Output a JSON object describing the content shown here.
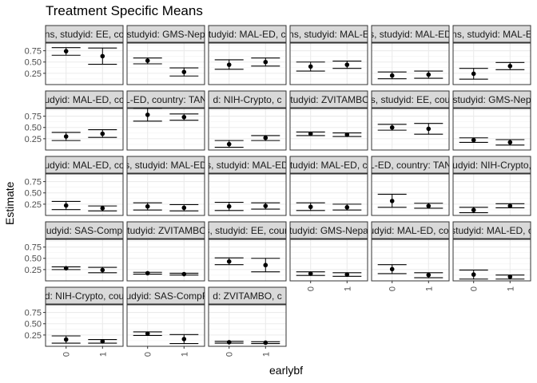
{
  "chart_data": {
    "type": "scatter",
    "title": "Treatment Specific Means",
    "xlabel": "earlybf",
    "ylabel": "Estimate",
    "x_categories": [
      "0",
      "1"
    ],
    "y_ticks": [
      0.25,
      0.5,
      0.75
    ],
    "y_tick_labels": [
      "0.25",
      "0.50",
      "0.75"
    ],
    "ylim": [
      0.0,
      0.92
    ],
    "grid": true,
    "panels": [
      {
        "strip": "ns, studyid: EE, co",
        "points": [
          {
            "x": "0",
            "est": 0.74,
            "lo": 0.65,
            "hi": 0.82
          },
          {
            "x": "1",
            "est": 0.63,
            "lo": 0.45,
            "hi": 0.81
          }
        ]
      },
      {
        "strip": "studyid: GMS-Nep",
        "points": [
          {
            "x": "0",
            "est": 0.53,
            "lo": 0.46,
            "hi": 0.59
          },
          {
            "x": "1",
            "est": 0.28,
            "lo": 0.19,
            "hi": 0.37
          }
        ]
      },
      {
        "strip": "studyid: MAL-ED, co",
        "points": [
          {
            "x": "0",
            "est": 0.44,
            "lo": 0.34,
            "hi": 0.55
          },
          {
            "x": "1",
            "est": 0.5,
            "lo": 0.41,
            "hi": 0.59
          }
        ]
      },
      {
        "strip": "ns, studyid: MAL-E",
        "points": [
          {
            "x": "0",
            "est": 0.4,
            "lo": 0.3,
            "hi": 0.5
          },
          {
            "x": "1",
            "est": 0.44,
            "lo": 0.36,
            "hi": 0.52
          }
        ]
      },
      {
        "strip": "s, studyid: MAL-ED",
        "points": [
          {
            "x": "0",
            "est": 0.2,
            "lo": 0.13,
            "hi": 0.28
          },
          {
            "x": "1",
            "est": 0.22,
            "lo": 0.14,
            "hi": 0.3
          }
        ]
      },
      {
        "strip": "ns, studyid: MAL-E",
        "points": [
          {
            "x": "0",
            "est": 0.24,
            "lo": 0.12,
            "hi": 0.36
          },
          {
            "x": "1",
            "est": 0.41,
            "lo": 0.33,
            "hi": 0.49
          }
        ]
      },
      {
        "strip": "udyid: MAL-ED, co",
        "points": [
          {
            "x": "0",
            "est": 0.3,
            "lo": 0.21,
            "hi": 0.39
          },
          {
            "x": "1",
            "est": 0.36,
            "lo": 0.28,
            "hi": 0.45
          }
        ]
      },
      {
        "strip": "L-ED, country: TAN",
        "points": [
          {
            "x": "0",
            "est": 0.78,
            "lo": 0.64,
            "hi": 0.92
          },
          {
            "x": "1",
            "est": 0.73,
            "lo": 0.66,
            "hi": 0.8
          }
        ]
      },
      {
        "strip": "d: NIH-Crypto, c",
        "points": [
          {
            "x": "0",
            "est": 0.13,
            "lo": 0.06,
            "hi": 0.21
          },
          {
            "x": "1",
            "est": 0.27,
            "lo": 0.21,
            "hi": 0.32
          }
        ]
      },
      {
        "strip": "studyid: ZVITAMBO,",
        "points": [
          {
            "x": "0",
            "est": 0.36,
            "lo": 0.32,
            "hi": 0.4
          },
          {
            "x": "1",
            "est": 0.34,
            "lo": 0.3,
            "hi": 0.38
          }
        ]
      },
      {
        "strip": "s, studyid: EE, cou",
        "points": [
          {
            "x": "0",
            "est": 0.5,
            "lo": 0.44,
            "hi": 0.57
          },
          {
            "x": "1",
            "est": 0.47,
            "lo": 0.35,
            "hi": 0.59
          }
        ]
      },
      {
        "strip": "studyid: GMS-Nep",
        "points": [
          {
            "x": "0",
            "est": 0.22,
            "lo": 0.17,
            "hi": 0.27
          },
          {
            "x": "1",
            "est": 0.17,
            "lo": 0.11,
            "hi": 0.23
          }
        ]
      },
      {
        "strip": "udyid: MAL-ED, co",
        "points": [
          {
            "x": "0",
            "est": 0.22,
            "lo": 0.13,
            "hi": 0.31
          },
          {
            "x": "1",
            "est": 0.16,
            "lo": 0.1,
            "hi": 0.21
          }
        ]
      },
      {
        "strip": "s, studyid: MAL-ED",
        "points": [
          {
            "x": "0",
            "est": 0.2,
            "lo": 0.12,
            "hi": 0.28
          },
          {
            "x": "1",
            "est": 0.17,
            "lo": 0.1,
            "hi": 0.24
          }
        ]
      },
      {
        "strip": "s, studyid: MAL-ED",
        "points": [
          {
            "x": "0",
            "est": 0.2,
            "lo": 0.11,
            "hi": 0.29
          },
          {
            "x": "1",
            "est": 0.21,
            "lo": 0.14,
            "hi": 0.28
          }
        ]
      },
      {
        "strip": "studyid: MAL-ED, co",
        "points": [
          {
            "x": "0",
            "est": 0.19,
            "lo": 0.11,
            "hi": 0.28
          },
          {
            "x": "1",
            "est": 0.18,
            "lo": 0.12,
            "hi": 0.25
          }
        ]
      },
      {
        "strip": "L-ED, country: TAN",
        "points": [
          {
            "x": "0",
            "est": 0.32,
            "lo": 0.18,
            "hi": 0.47
          },
          {
            "x": "1",
            "est": 0.21,
            "lo": 0.16,
            "hi": 0.27
          }
        ]
      },
      {
        "strip": "studyid: NIH-Crypto, c",
        "points": [
          {
            "x": "0",
            "est": 0.12,
            "lo": 0.06,
            "hi": 0.18
          },
          {
            "x": "1",
            "est": 0.21,
            "lo": 0.17,
            "hi": 0.26
          }
        ]
      },
      {
        "strip": "udyid: SAS-Comp",
        "points": [
          {
            "x": "0",
            "est": 0.28,
            "lo": 0.25,
            "hi": 0.31
          },
          {
            "x": "1",
            "est": 0.24,
            "lo": 0.18,
            "hi": 0.3
          }
        ]
      },
      {
        "strip": "studyid: ZVITAMBO,",
        "points": [
          {
            "x": "0",
            "est": 0.17,
            "lo": 0.15,
            "hi": 0.19
          },
          {
            "x": "1",
            "est": 0.15,
            "lo": 0.13,
            "hi": 0.17
          }
        ]
      },
      {
        "strip": "s, studyid: EE, coun",
        "points": [
          {
            "x": "0",
            "est": 0.43,
            "lo": 0.36,
            "hi": 0.51
          },
          {
            "x": "1",
            "est": 0.35,
            "lo": 0.2,
            "hi": 0.5
          }
        ]
      },
      {
        "strip": "studyid: GMS-Nepal,",
        "points": [
          {
            "x": "0",
            "est": 0.16,
            "lo": 0.12,
            "hi": 0.2
          },
          {
            "x": "1",
            "est": 0.14,
            "lo": 0.1,
            "hi": 0.18
          }
        ]
      },
      {
        "strip": "studyid: MAL-ED, coun",
        "points": [
          {
            "x": "0",
            "est": 0.26,
            "lo": 0.16,
            "hi": 0.36
          },
          {
            "x": "1",
            "est": 0.13,
            "lo": 0.07,
            "hi": 0.18
          }
        ]
      },
      {
        "strip": "studyid: MAL-ED, c",
        "points": [
          {
            "x": "0",
            "est": 0.14,
            "lo": 0.04,
            "hi": 0.24
          },
          {
            "x": "1",
            "est": 0.09,
            "lo": 0.04,
            "hi": 0.13
          }
        ]
      },
      {
        "strip": "d: NIH-Crypto, cou",
        "points": [
          {
            "x": "0",
            "est": 0.15,
            "lo": 0.07,
            "hi": 0.23
          },
          {
            "x": "1",
            "est": 0.11,
            "lo": 0.07,
            "hi": 0.15
          }
        ]
      },
      {
        "strip": "studyid: SAS-CompFe",
        "points": [
          {
            "x": "0",
            "est": 0.28,
            "lo": 0.24,
            "hi": 0.32
          },
          {
            "x": "1",
            "est": 0.16,
            "lo": 0.06,
            "hi": 0.26
          }
        ]
      },
      {
        "strip": "d: ZVITAMBO, c",
        "points": [
          {
            "x": "0",
            "est": 0.09,
            "lo": 0.07,
            "hi": 0.11
          },
          {
            "x": "1",
            "est": 0.08,
            "lo": 0.06,
            "hi": 0.1
          }
        ]
      }
    ]
  }
}
